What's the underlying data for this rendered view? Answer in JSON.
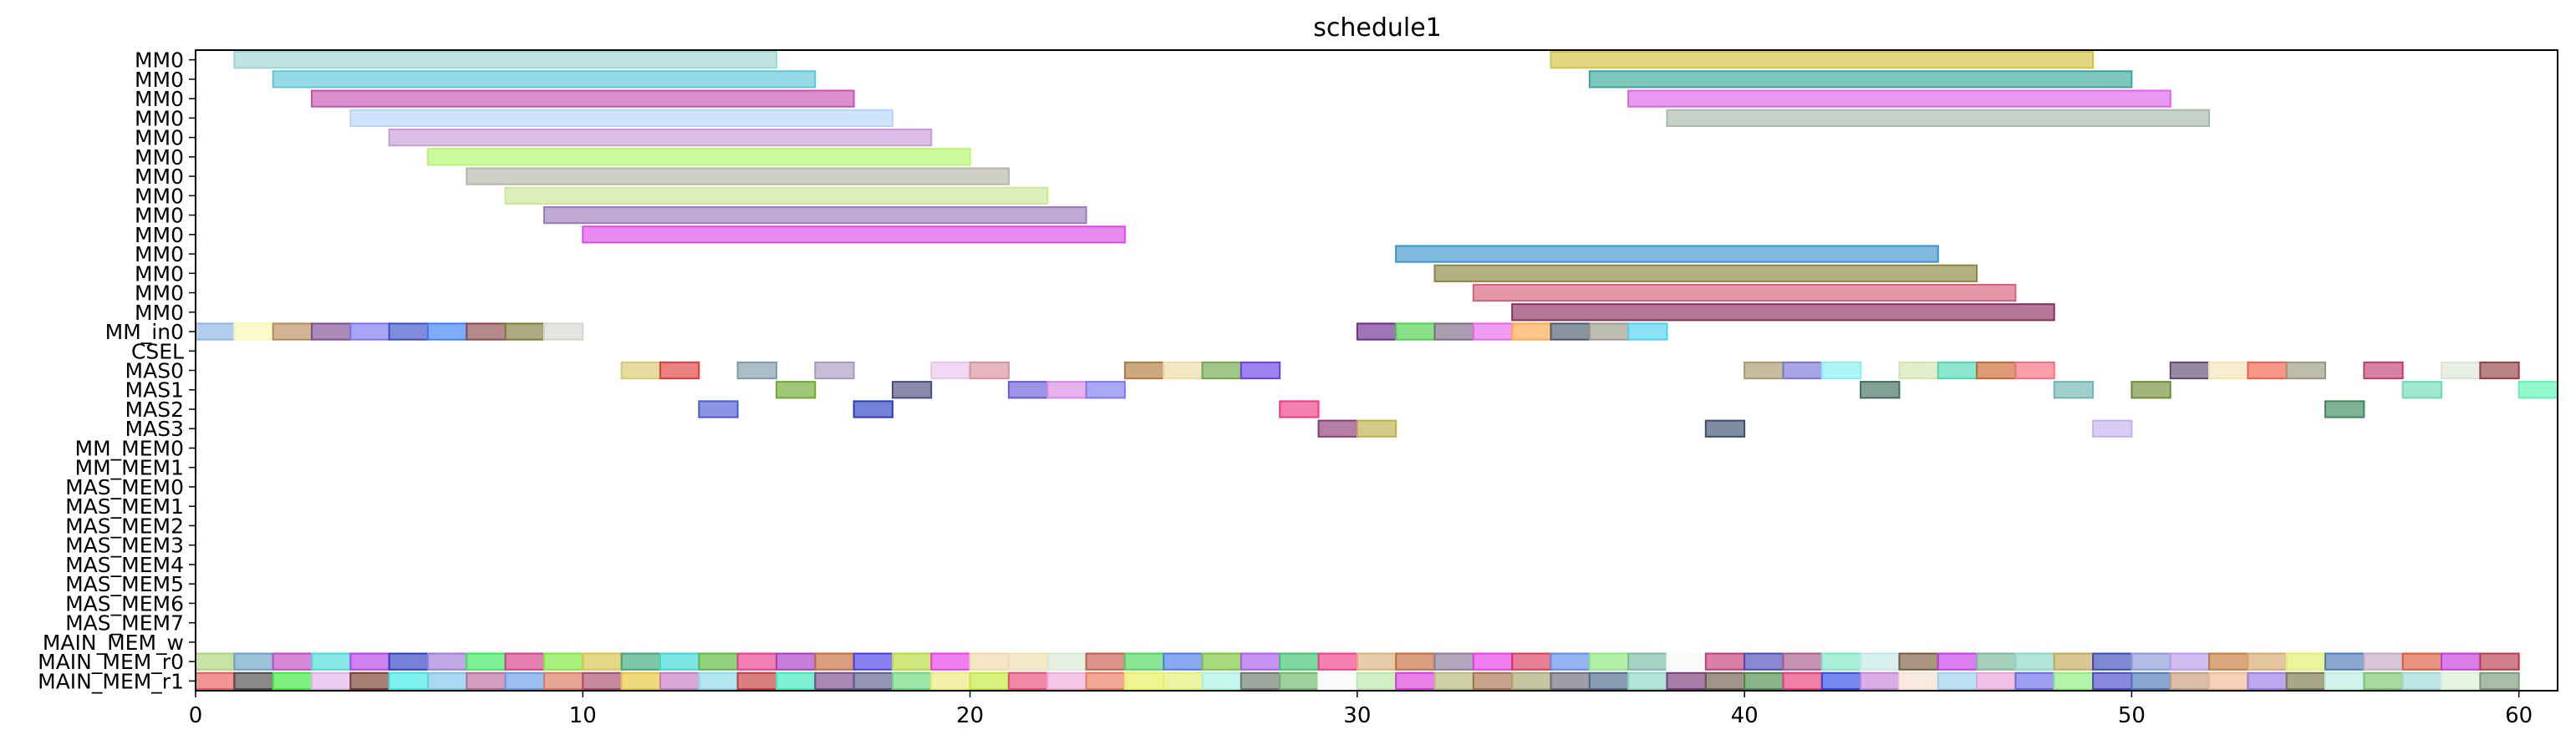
{
  "chart_data": {
    "type": "gantt",
    "title": "schedule1",
    "xlim": [
      0,
      61
    ],
    "xticks": [
      0,
      10,
      20,
      30,
      40,
      50,
      60
    ],
    "rows": [
      "MM0",
      "MM0",
      "MM0",
      "MM0",
      "MM0",
      "MM0",
      "MM0",
      "MM0",
      "MM0",
      "MM0",
      "MM0",
      "MM0",
      "MM0",
      "MM0",
      "MM_in0",
      "CSEL",
      "MAS0",
      "MAS1",
      "MAS2",
      "MAS3",
      "MM_MEM0",
      "MM_MEM1",
      "MAS_MEM0",
      "MAS_MEM1",
      "MAS_MEM2",
      "MAS_MEM3",
      "MAS_MEM4",
      "MAS_MEM5",
      "MAS_MEM6",
      "MAS_MEM7",
      "MAIN_MEM_w",
      "MAIN_MEM_r0",
      "MAIN_MEM_r1"
    ],
    "tasks": [
      {
        "row": 0,
        "start": 1,
        "end": 15,
        "color": "#9ad6d2"
      },
      {
        "row": 0,
        "start": 35,
        "end": 49,
        "color": "#d4c33e"
      },
      {
        "row": 1,
        "start": 2,
        "end": 16,
        "color": "#5ec6d8"
      },
      {
        "row": 1,
        "start": 36,
        "end": 50,
        "color": "#3aa79a"
      },
      {
        "row": 2,
        "start": 3,
        "end": 17,
        "color": "#c651b2"
      },
      {
        "row": 2,
        "start": 37,
        "end": 51,
        "color": "#dd63e9"
      },
      {
        "row": 3,
        "start": 4,
        "end": 18,
        "color": "#b5d6fa"
      },
      {
        "row": 3,
        "start": 38,
        "end": 52,
        "color": "#a8b8ac"
      },
      {
        "row": 4,
        "start": 5,
        "end": 19,
        "color": "#c79ad8"
      },
      {
        "row": 5,
        "start": 6,
        "end": 20,
        "color": "#b4f86a"
      },
      {
        "row": 6,
        "start": 7,
        "end": 21,
        "color": "#b5b5a8"
      },
      {
        "row": 7,
        "start": 8,
        "end": 22,
        "color": "#cbe795"
      },
      {
        "row": 8,
        "start": 9,
        "end": 23,
        "color": "#9c7ab8"
      },
      {
        "row": 9,
        "start": 10,
        "end": 24,
        "color": "#dd4ae8"
      },
      {
        "row": 10,
        "start": 31,
        "end": 45,
        "color": "#3a93cc"
      },
      {
        "row": 11,
        "start": 32,
        "end": 46,
        "color": "#8b8542"
      },
      {
        "row": 12,
        "start": 33,
        "end": 47,
        "color": "#d65f7b"
      },
      {
        "row": 13,
        "start": 34,
        "end": 48,
        "color": "#8b2f5f"
      },
      {
        "row": 14,
        "start": 0,
        "end": 1,
        "color": "#8bb4e4"
      },
      {
        "row": 14,
        "start": 1,
        "end": 2,
        "color": "#fbf7b0"
      },
      {
        "row": 14,
        "start": 2,
        "end": 3,
        "color": "#b88a5c"
      },
      {
        "row": 14,
        "start": 3,
        "end": 4,
        "color": "#7e4c93"
      },
      {
        "row": 14,
        "start": 4,
        "end": 5,
        "color": "#7777f0"
      },
      {
        "row": 14,
        "start": 5,
        "end": 6,
        "color": "#3b4ec4"
      },
      {
        "row": 14,
        "start": 6,
        "end": 7,
        "color": "#3b7ff5"
      },
      {
        "row": 14,
        "start": 7,
        "end": 8,
        "color": "#8a4a4a"
      },
      {
        "row": 14,
        "start": 8,
        "end": 9,
        "color": "#7f7a3c"
      },
      {
        "row": 14,
        "start": 9,
        "end": 10,
        "color": "#d5d5cf"
      },
      {
        "row": 14,
        "start": 30,
        "end": 31,
        "color": "#6a2d8e"
      },
      {
        "row": 14,
        "start": 31,
        "end": 32,
        "color": "#4fd04a"
      },
      {
        "row": 14,
        "start": 32,
        "end": 33,
        "color": "#7c6c85"
      },
      {
        "row": 14,
        "start": 33,
        "end": 34,
        "color": "#e767e9"
      },
      {
        "row": 14,
        "start": 34,
        "end": 35,
        "color": "#ffa64a"
      },
      {
        "row": 14,
        "start": 35,
        "end": 36,
        "color": "#4a5a6d"
      },
      {
        "row": 14,
        "start": 36,
        "end": 37,
        "color": "#9a9a8a"
      },
      {
        "row": 14,
        "start": 37,
        "end": 38,
        "color": "#4fd2ee"
      },
      {
        "row": 16,
        "start": 11,
        "end": 12,
        "color": "#d8c96b"
      },
      {
        "row": 16,
        "start": 12,
        "end": 13,
        "color": "#e03c3c"
      },
      {
        "row": 16,
        "start": 14,
        "end": 15,
        "color": "#7e9ba8"
      },
      {
        "row": 16,
        "start": 16,
        "end": 17,
        "color": "#a999bf"
      },
      {
        "row": 16,
        "start": 19,
        "end": 20,
        "color": "#e9c3ee"
      },
      {
        "row": 16,
        "start": 20,
        "end": 21,
        "color": "#d9909f"
      },
      {
        "row": 16,
        "start": 24,
        "end": 25,
        "color": "#b07a3a"
      },
      {
        "row": 16,
        "start": 25,
        "end": 26,
        "color": "#ebdca3"
      },
      {
        "row": 16,
        "start": 26,
        "end": 27,
        "color": "#6fa84a"
      },
      {
        "row": 16,
        "start": 27,
        "end": 28,
        "color": "#6a40e8"
      },
      {
        "row": 16,
        "start": 40,
        "end": 41,
        "color": "#a89a6a"
      },
      {
        "row": 16,
        "start": 41,
        "end": 42,
        "color": "#7a75d8"
      },
      {
        "row": 16,
        "start": 42,
        "end": 43,
        "color": "#84f0f0"
      },
      {
        "row": 16,
        "start": 44,
        "end": 45,
        "color": "#d2e4ac"
      },
      {
        "row": 16,
        "start": 45,
        "end": 46,
        "color": "#4ed8b2"
      },
      {
        "row": 16,
        "start": 46,
        "end": 47,
        "color": "#c9642f"
      },
      {
        "row": 16,
        "start": 47,
        "end": 48,
        "color": "#f76e7e"
      },
      {
        "row": 16,
        "start": 51,
        "end": 52,
        "color": "#5f4a6f"
      },
      {
        "row": 16,
        "start": 52,
        "end": 53,
        "color": "#f1e5b3"
      },
      {
        "row": 16,
        "start": 53,
        "end": 54,
        "color": "#f25f4c"
      },
      {
        "row": 16,
        "start": 54,
        "end": 55,
        "color": "#9a9a7e"
      },
      {
        "row": 16,
        "start": 56,
        "end": 57,
        "color": "#c23c70"
      },
      {
        "row": 16,
        "start": 58,
        "end": 59,
        "color": "#dbe5d6"
      },
      {
        "row": 16,
        "start": 59,
        "end": 60,
        "color": "#943f43"
      },
      {
        "row": 17,
        "start": 15,
        "end": 16,
        "color": "#6aaa2e"
      },
      {
        "row": 17,
        "start": 18,
        "end": 19,
        "color": "#4a4a7e"
      },
      {
        "row": 17,
        "start": 21,
        "end": 22,
        "color": "#6a5ad8"
      },
      {
        "row": 17,
        "start": 22,
        "end": 23,
        "color": "#d88ae2"
      },
      {
        "row": 17,
        "start": 23,
        "end": 24,
        "color": "#7a7af0"
      },
      {
        "row": 17,
        "start": 43,
        "end": 44,
        "color": "#3d6e5c"
      },
      {
        "row": 17,
        "start": 48,
        "end": 49,
        "color": "#6fb5b3"
      },
      {
        "row": 17,
        "start": 50,
        "end": 51,
        "color": "#6e8e36"
      },
      {
        "row": 17,
        "start": 57,
        "end": 58,
        "color": "#6fdcb8"
      },
      {
        "row": 17,
        "start": 60,
        "end": 61,
        "color": "#5af5b2"
      },
      {
        "row": 18,
        "start": 13,
        "end": 14,
        "color": "#4a5ad2"
      },
      {
        "row": 18,
        "start": 17,
        "end": 18,
        "color": "#2b3ec0"
      },
      {
        "row": 18,
        "start": 28,
        "end": 29,
        "color": "#ef3a82"
      },
      {
        "row": 18,
        "start": 55,
        "end": 56,
        "color": "#3a8a5a"
      },
      {
        "row": 19,
        "start": 29,
        "end": 30,
        "color": "#8a3a78"
      },
      {
        "row": 19,
        "start": 30,
        "end": 31,
        "color": "#bcb04a"
      },
      {
        "row": 19,
        "start": 39,
        "end": 40,
        "color": "#3a4e6e"
      },
      {
        "row": 19,
        "start": 49,
        "end": 50,
        "color": "#c4b2ee"
      }
    ],
    "memory_rows": {
      "MAIN_MEM_r0": [
        "#a9d47a",
        "#6a9fc7",
        "#c249c4",
        "#49d8d8",
        "#b340e8",
        "#2b3ec0",
        "#9d7ad6",
        "#3ae85a",
        "#d63a8a",
        "#7ae83a",
        "#d8c24a",
        "#3aa87a",
        "#3ad8d8",
        "#5ab83a",
        "#e83a8a",
        "#a83ac4",
        "#c46a3a",
        "#4a3ae8",
        "#b8d83a",
        "#e83ae8",
        "#f0d8a8",
        "#f0e0b0",
        "#d8e8d0",
        "#c45a4a",
        "#4ad85a",
        "#4a7ae8",
        "#7ac43a",
        "#a85ae8",
        "#3ac46a",
        "#f03a8a",
        "#d8b07a",
        "#c46a3a",
        "#8a7a9a",
        "#e83ae8",
        "#d83a5a",
        "#5a8ae8",
        "#8ae87a",
        "#7ab8a8",
        "#f8f8f8",
        "#c43a7a",
        "#4a4ab8",
        "#a85a8a",
        "#7ae8c4",
        "#c4e8e8",
        "#7a5a3a",
        "#c43ae8",
        "#7ab89a",
        "#8ad8c4",
        "#c4a85a",
        "#3a4ab8",
        "#8a9ad8",
        "#b89ae8",
        "#c47a3a",
        "#d8a86a",
        "#e0f06a",
        "#4a7ab8",
        "#c4a8c4",
        "#d85a3a",
        "#c43ad8",
        "#b83a4a"
      ],
      "MAIN_MEM_r1": [
        "#e85a5a",
        "#4a4a4a",
        "#3ae83a",
        "#e0b0e8",
        "#7a3a2a",
        "#3ae8e8",
        "#7ac4e8",
        "#b86a9a",
        "#6a9ae8",
        "#d87a5a",
        "#a84a6a",
        "#e8c43a",
        "#c47ac4",
        "#8ad8e8",
        "#c43a3a",
        "#3ae8b8",
        "#7a4a8a",
        "#5a5a8a",
        "#6ad87a",
        "#f0e87a",
        "#c4e83a",
        "#e84a7a",
        "#f0a8d8",
        "#e87a5a",
        "#e8f05a",
        "#e0f070",
        "#a8f0e0",
        "#6a7a6a",
        "#6ab86a",
        "#f8f8f8",
        "#b8e8a8",
        "#d83ad8",
        "#b8b87a",
        "#a8704a",
        "#a8a870",
        "#6a6a7a",
        "#4a6a8a",
        "#8ad8c4",
        "#7a3a7a",
        "#6a5a4a",
        "#4a8a4a",
        "#e83a7a",
        "#2b4ae8",
        "#c484d8",
        "#f8e0d0",
        "#9ad0f0",
        "#e8a0d8",
        "#6a6ae8",
        "#8af07a",
        "#4a4ac8",
        "#4a7ab8",
        "#c49a7a",
        "#f0b890",
        "#9a7ae8",
        "#7a7a4a",
        "#b8f0e0",
        "#7ac46a",
        "#9ad8d8",
        "#d8f0d0",
        "#7a9a7a"
      ]
    }
  }
}
